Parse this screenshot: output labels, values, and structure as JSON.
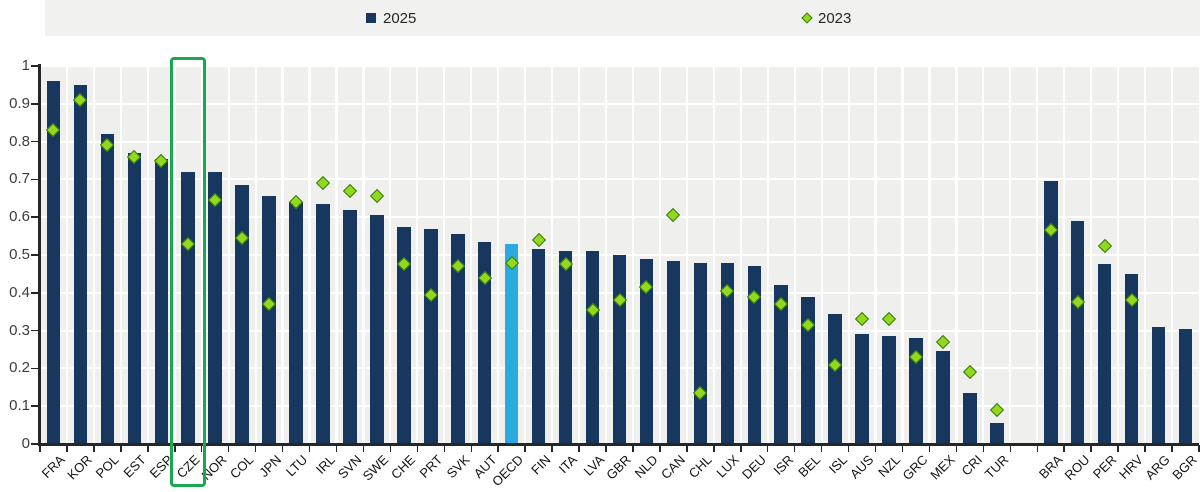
{
  "legend": {
    "items": [
      {
        "label": "2025",
        "marker": "square-icon",
        "color": "#17375e"
      },
      {
        "label": "2023",
        "marker": "diamond-icon",
        "color": "#94d71e"
      }
    ]
  },
  "chart_data": {
    "type": "bar",
    "title": "",
    "xlabel": "",
    "ylabel": "",
    "ylim": [
      0,
      1
    ],
    "ytick_labels": [
      "0",
      "0.1",
      "0.2",
      "0.3",
      "0.4",
      "0.5",
      "0.6",
      "0.7",
      "0.8",
      "0.9",
      "1"
    ],
    "grid": true,
    "legend_position": "top",
    "categories": [
      "FRA",
      "KOR",
      "POL",
      "EST",
      "ESP",
      "CZE",
      "NOR",
      "COL",
      "JPN",
      "LTU",
      "IRL",
      "SVN",
      "SWE",
      "CHE",
      "PRT",
      "SVK",
      "AUT",
      "OECD",
      "FIN",
      "ITA",
      "LVA",
      "GBR",
      "NLD",
      "CAN",
      "CHL",
      "LUX",
      "DEU",
      "ISR",
      "BEL",
      "ISL",
      "AUS",
      "NZL",
      "GRC",
      "MEX",
      "CRI",
      "TUR",
      "BRA",
      "ROU",
      "PER",
      "HRV",
      "ARG",
      "BGR"
    ],
    "series": [
      {
        "name": "2025",
        "type": "bar",
        "color": "#17375e",
        "values": [
          0.96,
          0.95,
          0.82,
          0.77,
          0.755,
          0.72,
          0.72,
          0.685,
          0.655,
          0.64,
          0.635,
          0.62,
          0.605,
          0.575,
          0.57,
          0.555,
          0.535,
          0.53,
          0.515,
          0.51,
          0.51,
          0.5,
          0.49,
          0.485,
          0.48,
          0.48,
          0.47,
          0.42,
          0.39,
          0.345,
          0.29,
          0.285,
          0.28,
          0.245,
          0.135,
          0.055,
          0.695,
          0.59,
          0.475,
          0.45,
          0.31,
          0.305
        ]
      },
      {
        "name": "2023",
        "type": "scatter",
        "marker": "diamond",
        "color": "#94d71e",
        "marker_border_color": "#2f7d0e",
        "values": [
          0.83,
          0.91,
          0.79,
          0.76,
          0.75,
          0.53,
          0.645,
          0.545,
          0.37,
          0.64,
          0.69,
          0.67,
          0.655,
          0.475,
          0.395,
          0.47,
          0.44,
          0.48,
          0.54,
          0.475,
          0.355,
          0.38,
          0.415,
          0.605,
          0.135,
          0.405,
          0.39,
          0.37,
          0.315,
          0.21,
          0.33,
          0.33,
          0.23,
          0.27,
          0.19,
          0.09,
          0.565,
          0.375,
          0.525,
          0.38,
          null,
          null
        ]
      }
    ],
    "special_bars": [
      {
        "category": "OECD",
        "color": "#29abe2"
      }
    ],
    "highlighted_category": "CZE",
    "highlight_box_color": "#1ca64f",
    "gap_after_category": "TUR",
    "colors": {
      "bar_default": "#17375e",
      "bar_oecd": "#29abe2",
      "marker_fill": "#94d71e",
      "marker_border": "#2f7d0e",
      "plot_background": "#efefee",
      "gridline": "#ffffff",
      "axis": "#262626",
      "legend_background": "#f1f1f0",
      "highlight_box": "#1ca64f"
    }
  }
}
